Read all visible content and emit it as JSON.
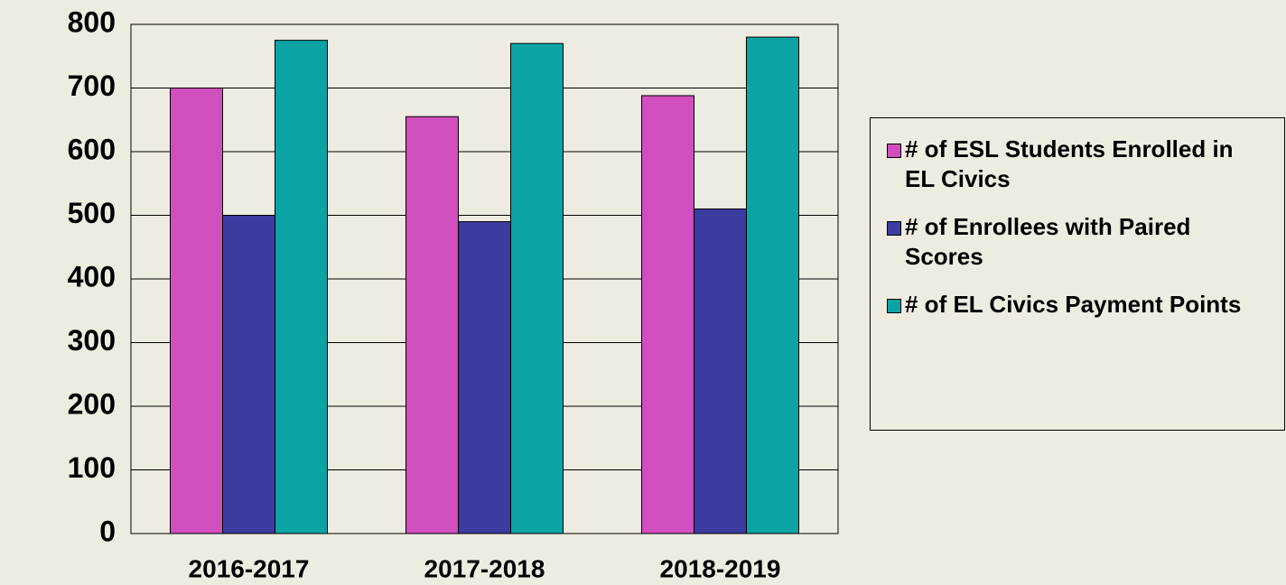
{
  "chart_data": {
    "type": "bar",
    "categories": [
      "2016-2017",
      "2017-2018",
      "2018-2019"
    ],
    "series": [
      {
        "name": "# of ESL Students Enrolled in EL Civics",
        "color": "#d04ebd",
        "values": [
          700,
          655,
          688
        ]
      },
      {
        "name": "# of Enrollees with Paired Scores",
        "color": "#3b3ba0",
        "values": [
          500,
          490,
          510
        ]
      },
      {
        "name": "# of EL Civics Payment Points",
        "color": "#0ba3a3",
        "values": [
          775,
          770,
          780
        ]
      }
    ],
    "ylim": [
      0,
      800
    ],
    "yticks": [
      0,
      100,
      200,
      300,
      400,
      500,
      600,
      700,
      800
    ],
    "grid": true,
    "legend": "right"
  }
}
